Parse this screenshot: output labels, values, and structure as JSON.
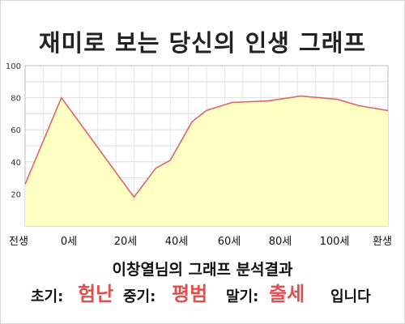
{
  "title": "재미로 보는 당신의 인생 그래프",
  "subtitle": "이창열님의 그래프 분석결과",
  "result": {
    "early_label": "초기:",
    "early_value": "험난",
    "middle_label": "중기:",
    "middle_value": "평범",
    "late_label": "말기:",
    "late_value": "출세",
    "ending": "입니다"
  },
  "colors": {
    "line": "#e06666",
    "fill": "#ffffc4",
    "accent": "#e05050"
  },
  "chart_data": {
    "type": "area",
    "x_categories": [
      "전생",
      "0세",
      "20세",
      "40세",
      "60세",
      "80세",
      "100세",
      "환생"
    ],
    "y_ticks": [
      20,
      40,
      60,
      80,
      100
    ],
    "ylim": [
      0,
      100
    ],
    "grid": true,
    "series": [
      {
        "x": [
          -10,
          0,
          10,
          20,
          26,
          30,
          36,
          40,
          47,
          57,
          66,
          76,
          82,
          90
        ],
        "values": [
          26,
          80,
          49,
          18,
          36,
          41,
          65,
          72,
          77,
          78,
          81,
          79,
          75,
          72
        ]
      }
    ]
  }
}
